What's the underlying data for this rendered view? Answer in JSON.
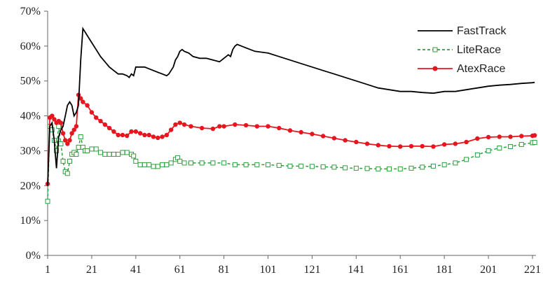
{
  "chart_data": {
    "type": "line",
    "xlim": [
      1,
      221
    ],
    "ylim": [
      0,
      70
    ],
    "x_ticks": [
      1,
      21,
      41,
      61,
      81,
      101,
      121,
      141,
      161,
      181,
      201,
      221
    ],
    "y_ticks": [
      "0%",
      "10%",
      "20%",
      "30%",
      "40%",
      "50%",
      "60%",
      "70%"
    ],
    "grid": false,
    "legend_position": "top-right",
    "series": [
      {
        "name": "FastTrack",
        "color": "#000000",
        "style": "solid",
        "marker": "none",
        "points": [
          [
            1,
            20
          ],
          [
            2,
            37
          ],
          [
            3,
            38
          ],
          [
            4,
            33
          ],
          [
            5,
            25
          ],
          [
            6,
            34
          ],
          [
            7,
            36
          ],
          [
            8,
            37
          ],
          [
            9,
            40
          ],
          [
            10,
            43
          ],
          [
            11,
            44
          ],
          [
            12,
            43
          ],
          [
            13,
            40
          ],
          [
            14,
            41
          ],
          [
            15,
            43
          ],
          [
            16,
            56
          ],
          [
            17,
            65
          ],
          [
            18,
            64
          ],
          [
            19,
            63
          ],
          [
            21,
            61
          ],
          [
            23,
            59
          ],
          [
            25,
            57
          ],
          [
            27,
            55.5
          ],
          [
            29,
            54
          ],
          [
            31,
            53
          ],
          [
            33,
            52
          ],
          [
            35,
            52
          ],
          [
            37,
            51.5
          ],
          [
            38,
            51
          ],
          [
            39,
            52
          ],
          [
            40,
            51.5
          ],
          [
            41,
            54
          ],
          [
            42,
            54
          ],
          [
            43,
            54
          ],
          [
            45,
            54
          ],
          [
            47,
            53.5
          ],
          [
            49,
            53
          ],
          [
            51,
            52.5
          ],
          [
            53,
            52
          ],
          [
            55,
            51.5
          ],
          [
            56,
            52
          ],
          [
            57,
            53
          ],
          [
            58,
            54
          ],
          [
            59,
            56
          ],
          [
            60,
            57
          ],
          [
            61,
            58.5
          ],
          [
            62,
            59
          ],
          [
            63,
            58.5
          ],
          [
            65,
            58
          ],
          [
            67,
            57
          ],
          [
            70,
            56.5
          ],
          [
            73,
            56.5
          ],
          [
            76,
            56
          ],
          [
            79,
            55.5
          ],
          [
            81,
            56.5
          ],
          [
            83,
            57.5
          ],
          [
            84,
            57
          ],
          [
            85,
            59
          ],
          [
            86,
            60
          ],
          [
            87,
            60.5
          ],
          [
            89,
            60
          ],
          [
            91,
            59.5
          ],
          [
            95,
            58.5
          ],
          [
            101,
            58
          ],
          [
            106,
            57
          ],
          [
            111,
            56
          ],
          [
            116,
            55
          ],
          [
            121,
            54
          ],
          [
            126,
            53
          ],
          [
            131,
            52
          ],
          [
            136,
            51
          ],
          [
            141,
            50
          ],
          [
            146,
            49
          ],
          [
            151,
            48
          ],
          [
            156,
            47.5
          ],
          [
            161,
            47
          ],
          [
            166,
            47
          ],
          [
            171,
            46.7
          ],
          [
            176,
            46.5
          ],
          [
            181,
            47
          ],
          [
            186,
            47
          ],
          [
            191,
            47.5
          ],
          [
            196,
            48
          ],
          [
            201,
            48.5
          ],
          [
            206,
            48.8
          ],
          [
            211,
            49
          ],
          [
            216,
            49.3
          ],
          [
            221,
            49.5
          ],
          [
            222,
            49.6
          ]
        ]
      },
      {
        "name": "LiteRace",
        "color": "#2e9e3e",
        "style": "dashed",
        "marker": "hollow-square",
        "points": [
          [
            1,
            15.5
          ],
          [
            2,
            37
          ],
          [
            3,
            36
          ],
          [
            4,
            33
          ],
          [
            5,
            30
          ],
          [
            6,
            37
          ],
          [
            7,
            32
          ],
          [
            8,
            27
          ],
          [
            9,
            24
          ],
          [
            10,
            23.5
          ],
          [
            11,
            27
          ],
          [
            12,
            29
          ],
          [
            13,
            29.5
          ],
          [
            14,
            29
          ],
          [
            15,
            31
          ],
          [
            16,
            34
          ],
          [
            17,
            31
          ],
          [
            18,
            30
          ],
          [
            19,
            30
          ],
          [
            21,
            30.5
          ],
          [
            23,
            30.5
          ],
          [
            25,
            29.5
          ],
          [
            27,
            29
          ],
          [
            29,
            29
          ],
          [
            31,
            29
          ],
          [
            33,
            29
          ],
          [
            35,
            29.5
          ],
          [
            37,
            29.5
          ],
          [
            39,
            29
          ],
          [
            40,
            28.5
          ],
          [
            41,
            27
          ],
          [
            43,
            26
          ],
          [
            45,
            26
          ],
          [
            47,
            26
          ],
          [
            49,
            25.5
          ],
          [
            51,
            25.5
          ],
          [
            53,
            26
          ],
          [
            55,
            26
          ],
          [
            57,
            26.5
          ],
          [
            59,
            27.5
          ],
          [
            60,
            28
          ],
          [
            61,
            27
          ],
          [
            63,
            26.5
          ],
          [
            66,
            26.5
          ],
          [
            71,
            26.5
          ],
          [
            76,
            26.5
          ],
          [
            81,
            26.5
          ],
          [
            86,
            26
          ],
          [
            91,
            26
          ],
          [
            96,
            26
          ],
          [
            101,
            26
          ],
          [
            106,
            25.8
          ],
          [
            111,
            25.6
          ],
          [
            116,
            25.6
          ],
          [
            121,
            25.5
          ],
          [
            126,
            25.4
          ],
          [
            131,
            25.3
          ],
          [
            136,
            25.1
          ],
          [
            141,
            25
          ],
          [
            146,
            24.9
          ],
          [
            151,
            24.8
          ],
          [
            156,
            24.8
          ],
          [
            161,
            24.8
          ],
          [
            166,
            25
          ],
          [
            171,
            25.3
          ],
          [
            176,
            25.6
          ],
          [
            181,
            26
          ],
          [
            186,
            26.5
          ],
          [
            191,
            27.5
          ],
          [
            196,
            28.8
          ],
          [
            201,
            30
          ],
          [
            206,
            30.8
          ],
          [
            211,
            31.2
          ],
          [
            216,
            31.8
          ],
          [
            221,
            32.3
          ],
          [
            222,
            32.4
          ]
        ]
      },
      {
        "name": "AtexRace",
        "color": "#e8141e",
        "style": "solid",
        "marker": "filled-circle",
        "points": [
          [
            1,
            20.5
          ],
          [
            2,
            39.5
          ],
          [
            3,
            40
          ],
          [
            4,
            39
          ],
          [
            5,
            38
          ],
          [
            6,
            38.5
          ],
          [
            7,
            38
          ],
          [
            8,
            35
          ],
          [
            9,
            33
          ],
          [
            10,
            32
          ],
          [
            11,
            33
          ],
          [
            12,
            35
          ],
          [
            13,
            36
          ],
          [
            14,
            37
          ],
          [
            15,
            46
          ],
          [
            16,
            45
          ],
          [
            17,
            44
          ],
          [
            19,
            43
          ],
          [
            21,
            41
          ],
          [
            23,
            39.5
          ],
          [
            25,
            38.5
          ],
          [
            27,
            37.5
          ],
          [
            29,
            36.5
          ],
          [
            31,
            35.5
          ],
          [
            33,
            34.5
          ],
          [
            35,
            34.5
          ],
          [
            37,
            34.3
          ],
          [
            39,
            35.5
          ],
          [
            41,
            35.5
          ],
          [
            43,
            35
          ],
          [
            45,
            34.5
          ],
          [
            47,
            34.5
          ],
          [
            49,
            34
          ],
          [
            51,
            33.7
          ],
          [
            53,
            34
          ],
          [
            55,
            34.5
          ],
          [
            57,
            36
          ],
          [
            59,
            37.5
          ],
          [
            61,
            38
          ],
          [
            63,
            37.5
          ],
          [
            66,
            37
          ],
          [
            71,
            36.5
          ],
          [
            76,
            36.3
          ],
          [
            79,
            37
          ],
          [
            81,
            37
          ],
          [
            86,
            37.5
          ],
          [
            91,
            37.3
          ],
          [
            96,
            37
          ],
          [
            101,
            37
          ],
          [
            106,
            36.5
          ],
          [
            111,
            35.8
          ],
          [
            116,
            35.3
          ],
          [
            121,
            34.8
          ],
          [
            126,
            34.2
          ],
          [
            131,
            33.6
          ],
          [
            136,
            33
          ],
          [
            141,
            32.5
          ],
          [
            146,
            32
          ],
          [
            151,
            31.6
          ],
          [
            156,
            31.3
          ],
          [
            161,
            31.2
          ],
          [
            166,
            31.3
          ],
          [
            171,
            31.3
          ],
          [
            176,
            31.2
          ],
          [
            181,
            31.8
          ],
          [
            186,
            32
          ],
          [
            191,
            32.5
          ],
          [
            196,
            33.5
          ],
          [
            201,
            33.9
          ],
          [
            206,
            34
          ],
          [
            211,
            34
          ],
          [
            216,
            34.2
          ],
          [
            221,
            34.3
          ],
          [
            222,
            34.4
          ]
        ]
      }
    ]
  }
}
